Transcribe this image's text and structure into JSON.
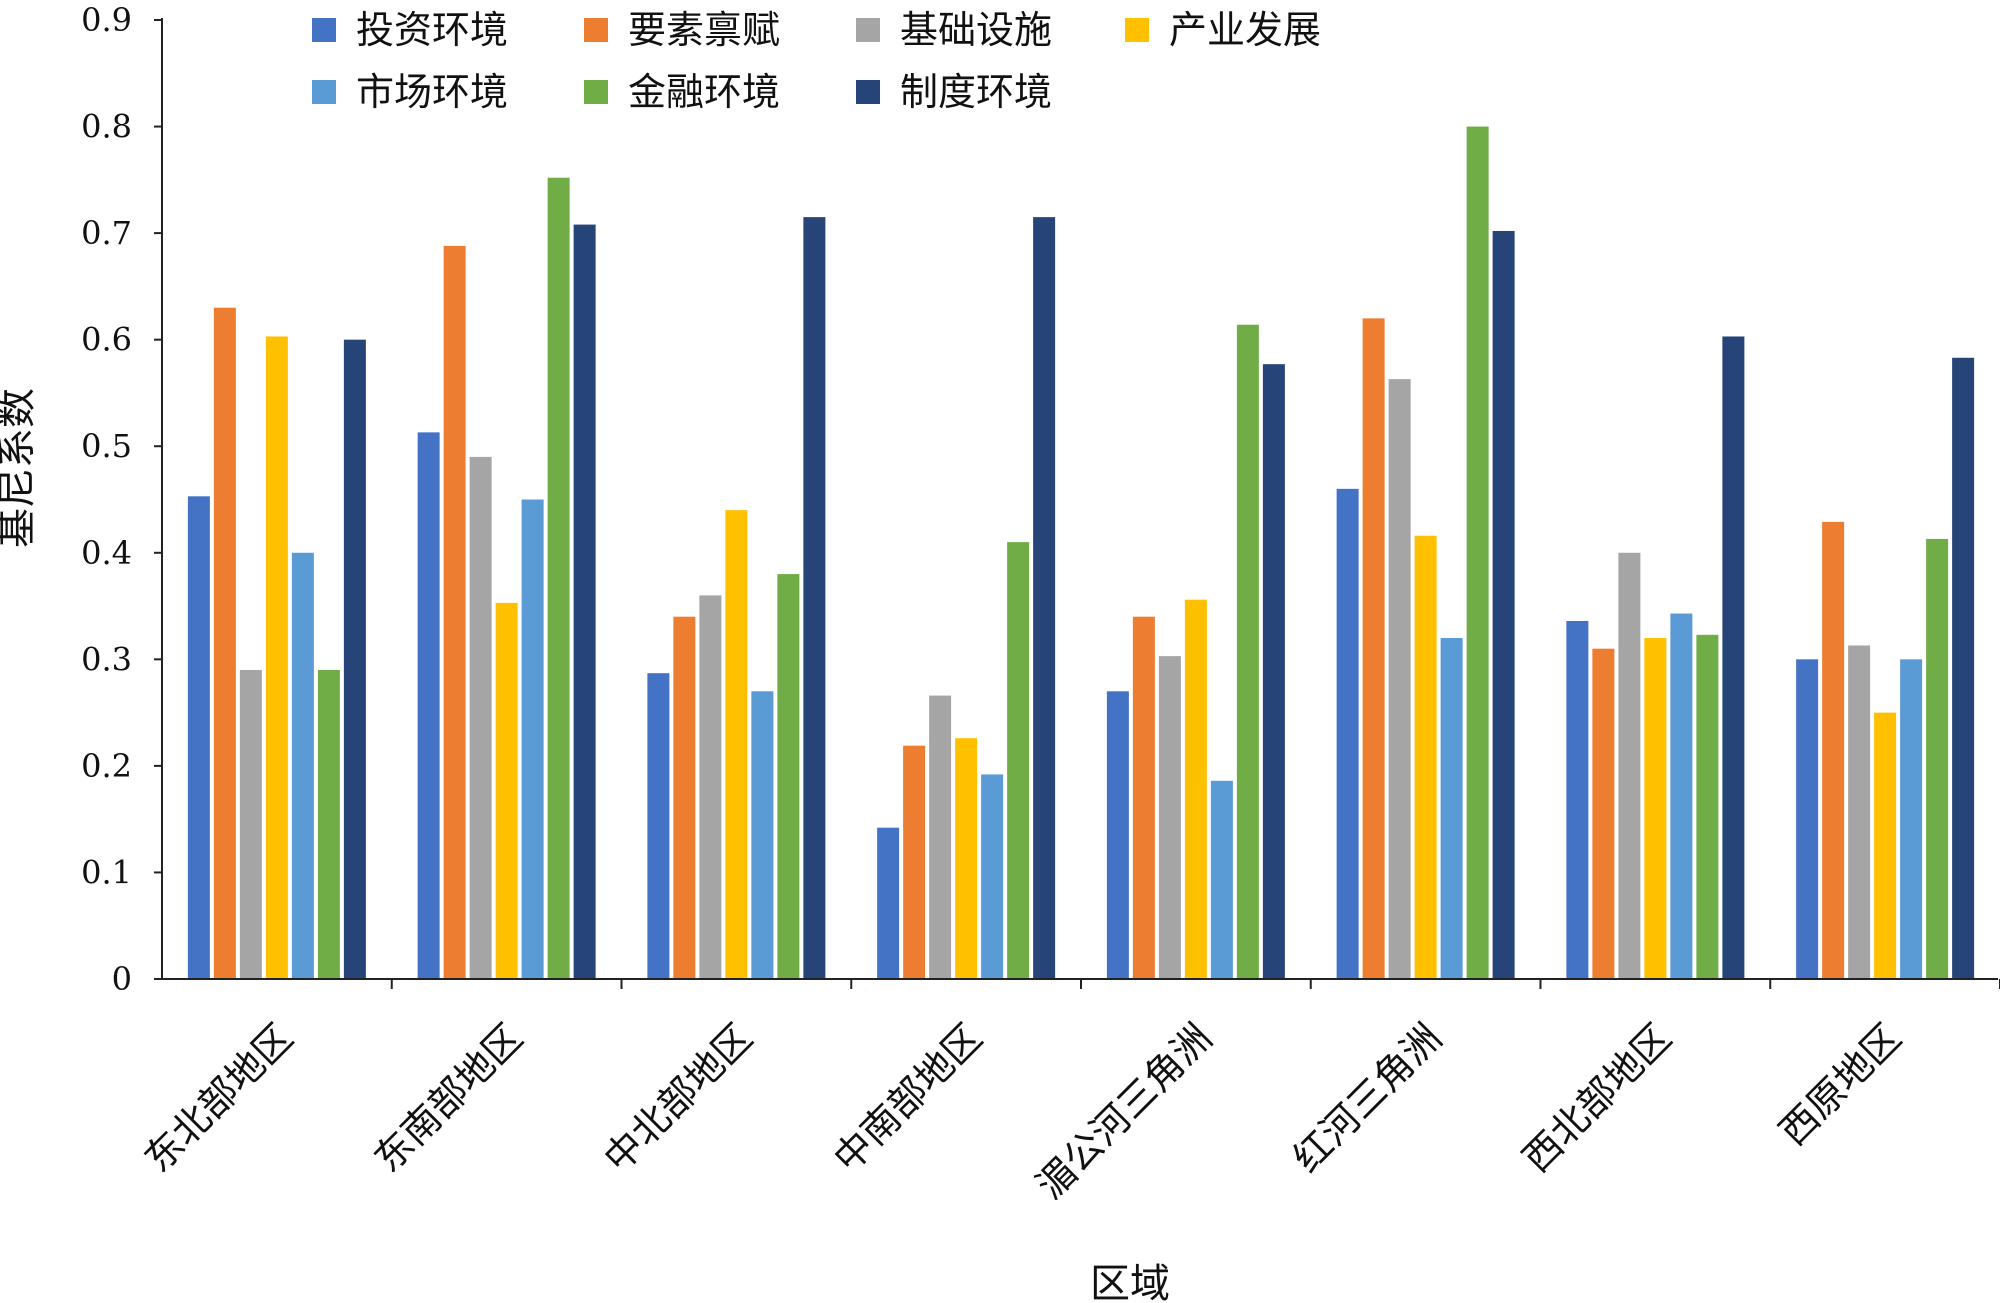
{
  "chart_data": {
    "type": "bar",
    "title": "",
    "xlabel": "区域",
    "ylabel": "基尼系数",
    "ylim": [
      0,
      0.9
    ],
    "yticks": [
      "0",
      "0.1",
      "0.2",
      "0.3",
      "0.4",
      "0.5",
      "0.6",
      "0.7",
      "0.8",
      "0.9"
    ],
    "grid": false,
    "legend_position": "top",
    "categories": [
      "东北部地区",
      "东南部地区",
      "中北部地区",
      "中南部地区",
      "湄公河三角洲",
      "红河三角洲",
      "西北部地区",
      "西原地区"
    ],
    "series": [
      {
        "name": "投资环境",
        "color": "#4472C4",
        "values": [
          0.453,
          0.513,
          0.287,
          0.142,
          0.27,
          0.46,
          0.336,
          0.3
        ]
      },
      {
        "name": "要素禀赋",
        "color": "#ED7D31",
        "values": [
          0.63,
          0.688,
          0.34,
          0.219,
          0.34,
          0.62,
          0.31,
          0.429
        ]
      },
      {
        "name": "基础设施",
        "color": "#A5A5A5",
        "values": [
          0.29,
          0.49,
          0.36,
          0.266,
          0.303,
          0.563,
          0.4,
          0.313
        ]
      },
      {
        "name": "产业发展",
        "color": "#FFC000",
        "values": [
          0.603,
          0.353,
          0.44,
          0.226,
          0.356,
          0.416,
          0.32,
          0.25
        ]
      },
      {
        "name": "市场环境",
        "color": "#5B9BD5",
        "values": [
          0.4,
          0.45,
          0.27,
          0.192,
          0.186,
          0.32,
          0.343,
          0.3
        ]
      },
      {
        "name": "金融环境",
        "color": "#70AD47",
        "values": [
          0.29,
          0.752,
          0.38,
          0.41,
          0.614,
          0.8,
          0.323,
          0.413
        ]
      },
      {
        "name": "制度环境",
        "color": "#264478",
        "values": [
          0.6,
          0.708,
          0.715,
          0.715,
          0.577,
          0.702,
          0.603,
          0.583
        ]
      }
    ]
  }
}
